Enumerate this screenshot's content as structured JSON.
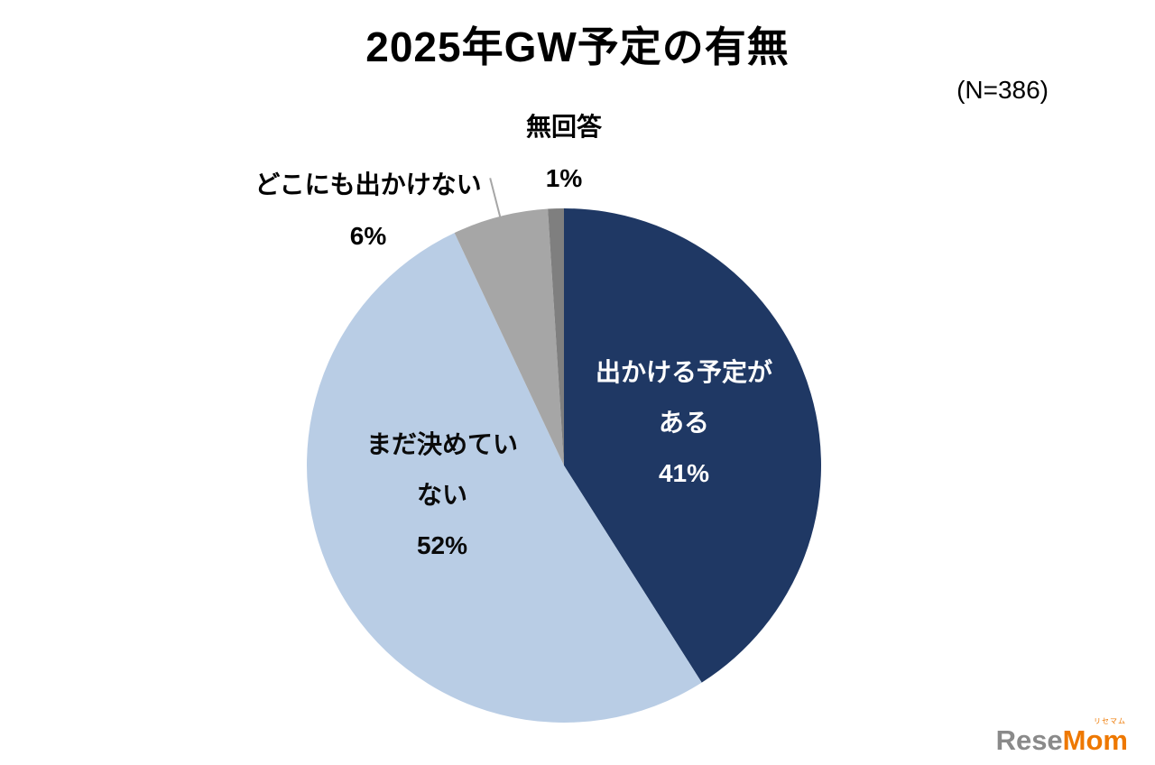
{
  "page": {
    "title": "2025年GW予定の有無",
    "sample_size": "(N=386)"
  },
  "chart_data": {
    "type": "pie",
    "title": "2025年GW予定の有無",
    "n_label": "(N=386)",
    "total": 100,
    "start_angle_deg": 0,
    "direction": "clockwise",
    "legend": "none",
    "slices": [
      {
        "label": "出かける予定がある",
        "value": 41,
        "pct_text": "41%",
        "color": "#1F3864",
        "label_color": "#FFFFFF",
        "label_position": "inside",
        "display_lines": [
          "出かける予定が",
          "ある",
          "41%"
        ]
      },
      {
        "label": "まだ決めていない",
        "value": 52,
        "pct_text": "52%",
        "color": "#B9CDE5",
        "label_color": "#000000",
        "label_position": "inside",
        "display_lines": [
          "まだ決めてい",
          "ない",
          "52%"
        ]
      },
      {
        "label": "どこにも出かけない",
        "value": 6,
        "pct_text": "6%",
        "color": "#A6A6A6",
        "label_color": "#000000",
        "label_position": "outside",
        "display_lines": [
          "どこにも出かけない",
          "6%"
        ]
      },
      {
        "label": "無回答",
        "value": 1,
        "pct_text": "1%",
        "color": "#7F7F7F",
        "label_color": "#000000",
        "label_position": "outside",
        "display_lines": [
          "無回答",
          "1%"
        ]
      }
    ]
  },
  "logo": {
    "part1": "Rese",
    "part2": "Mom",
    "ruby": "リセマム"
  }
}
